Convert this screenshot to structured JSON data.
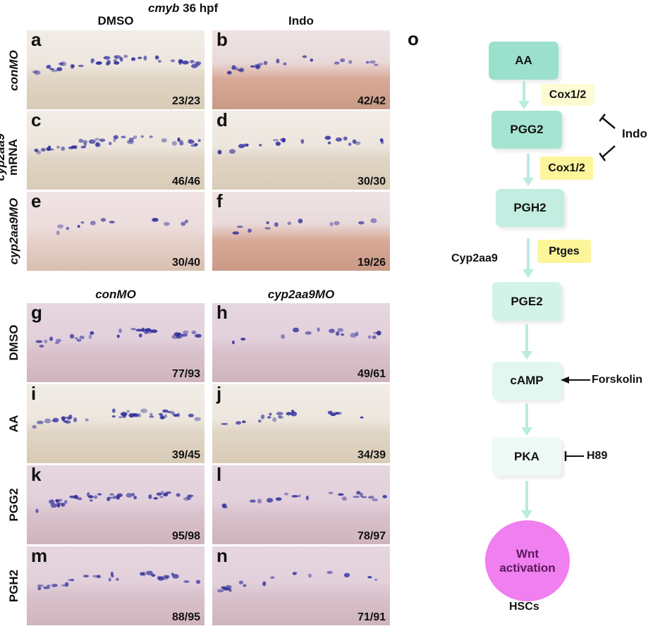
{
  "title": {
    "gene": "cmyb",
    "stage": "36 hpf"
  },
  "top_columns": [
    "DMSO",
    "Indo"
  ],
  "top_rows": [
    {
      "label": "conMO",
      "italic": true
    },
    {
      "label": "cyp2aa9",
      "label2": "mRNA"
    },
    {
      "label": "cyp2aa9MO",
      "italic": true
    }
  ],
  "bottom_columns": [
    "conMO",
    "cyp2aa9MO"
  ],
  "bottom_rows": [
    "DMSO",
    "AA",
    "PGG2",
    "PGH2"
  ],
  "panels": [
    {
      "letter": "a",
      "count": "23/23"
    },
    {
      "letter": "b",
      "count": "42/42"
    },
    {
      "letter": "c",
      "count": "46/46"
    },
    {
      "letter": "d",
      "count": "30/30"
    },
    {
      "letter": "e",
      "count": "30/40"
    },
    {
      "letter": "f",
      "count": "19/26"
    },
    {
      "letter": "g",
      "count": "77/93"
    },
    {
      "letter": "h",
      "count": "49/61"
    },
    {
      "letter": "i",
      "count": "39/45"
    },
    {
      "letter": "j",
      "count": "34/39"
    },
    {
      "letter": "k",
      "count": "95/98"
    },
    {
      "letter": "l",
      "count": "78/97"
    },
    {
      "letter": "m",
      "count": "88/95"
    },
    {
      "letter": "n",
      "count": "71/91"
    }
  ],
  "pathway": {
    "panel_letter": "o",
    "nodes": [
      "AA",
      "PGG2",
      "PGH2",
      "PGE2",
      "cAMP",
      "PKA"
    ],
    "final_node": {
      "line1": "Wnt",
      "line2": "activation"
    },
    "outcome": "HSCs",
    "enzymes": [
      "Cox1/2",
      "Cox1/2",
      "Ptges"
    ],
    "cyp": "Cyp2aa9",
    "inhibitors": {
      "indo": "Indo",
      "forskolin": "Forskolin",
      "h89": "H89"
    },
    "colors": {
      "node_dark": "#9be0cc",
      "node_light": "#dff6ef",
      "enzyme_pale": "#fdfbd2",
      "enzyme": "#fdf59a",
      "wnt": "#f07ff0"
    }
  }
}
